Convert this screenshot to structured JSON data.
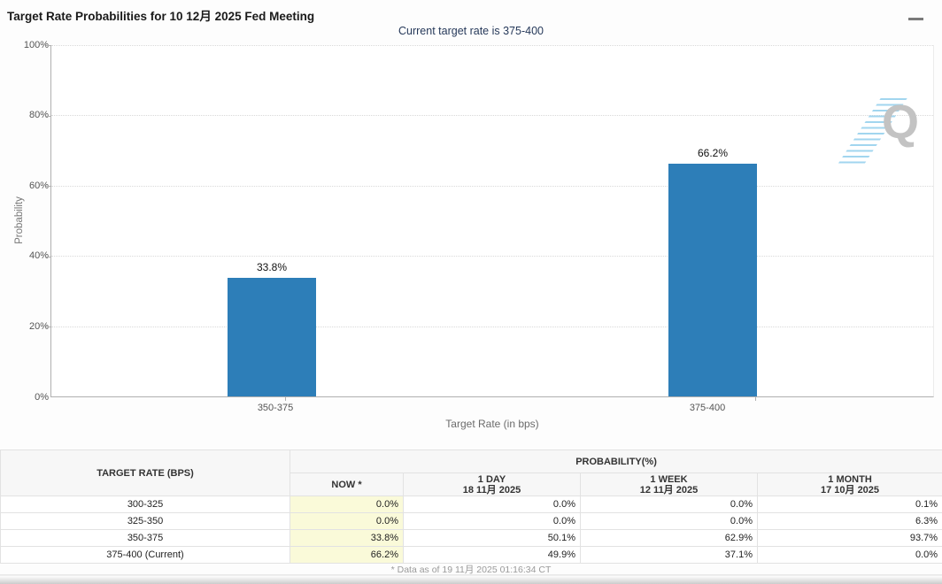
{
  "header": {
    "title": "Target Rate Probabilities for 10 12月 2025 Fed Meeting",
    "subtitle": "Current target rate is 375-400"
  },
  "chart_data": {
    "type": "bar",
    "title": "Target Rate Probabilities for 10 12月 2025 Fed Meeting",
    "categories": [
      "350-375",
      "375-400"
    ],
    "values": [
      33.8,
      66.2
    ],
    "value_labels": [
      "33.8%",
      "66.2%"
    ],
    "xlabel": "Target Rate (in bps)",
    "ylabel": "Probability",
    "ylim": [
      0,
      100
    ],
    "y_ticks": [
      "100%",
      "80%",
      "60%",
      "40%",
      "20%",
      "0%"
    ],
    "grid": true,
    "legend": false,
    "bar_color": "#2d7eb8",
    "watermark": "Q"
  },
  "table": {
    "col1_header": "TARGET RATE (BPS)",
    "group_header": "PROBABILITY(%)",
    "columns": [
      {
        "label": "NOW *",
        "sub": ""
      },
      {
        "label": "1 DAY",
        "sub": "18 11月 2025"
      },
      {
        "label": "1 WEEK",
        "sub": "12 11月 2025"
      },
      {
        "label": "1 MONTH",
        "sub": "17 10月 2025"
      }
    ],
    "rows": [
      {
        "rate": "300-325",
        "now": "0.0%",
        "day": "0.0%",
        "week": "0.0%",
        "month": "0.1%"
      },
      {
        "rate": "325-350",
        "now": "0.0%",
        "day": "0.0%",
        "week": "0.0%",
        "month": "6.3%"
      },
      {
        "rate": "350-375",
        "now": "33.8%",
        "day": "50.1%",
        "week": "62.9%",
        "month": "93.7%"
      },
      {
        "rate": "375-400 (Current)",
        "now": "66.2%",
        "day": "49.9%",
        "week": "37.1%",
        "month": "0.0%"
      }
    ],
    "footnote": "* Data as of 19 11月 2025 01:16:34 CT"
  }
}
